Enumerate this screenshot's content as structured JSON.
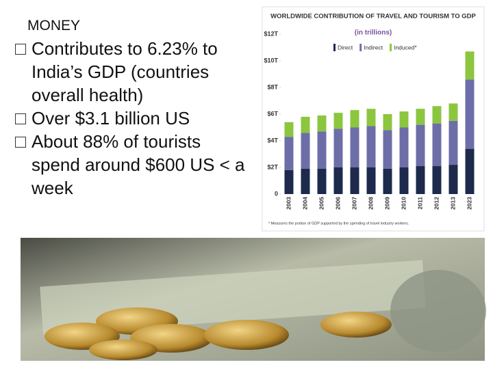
{
  "slide": {
    "heading": "MONEY",
    "bullets": [
      "Contributes to 6.23% to India’s GDP (countries overall health)",
      "Over $3.1 billion US",
      "About 88% of tourists spend around $600 US < a week"
    ]
  },
  "chart_data": {
    "type": "stacked_bar",
    "title": "WORLDWIDE CONTRIBUTION OF TRAVEL AND TOURISM TO GDP",
    "subtitle": "(in trillions)",
    "categories": [
      "2003",
      "2004",
      "2005",
      "2006",
      "2007",
      "2008",
      "2009",
      "2010",
      "2011",
      "2012",
      "2013",
      "2023"
    ],
    "series": [
      {
        "name": "Direct",
        "color": "#1d2a4c",
        "values": [
          1.8,
          1.9,
          1.9,
          2.0,
          2.0,
          2.0,
          1.9,
          2.0,
          2.1,
          2.1,
          2.2,
          3.4
        ]
      },
      {
        "name": "Indirect",
        "color": "#6d6ea8",
        "values": [
          2.5,
          2.7,
          2.8,
          2.9,
          3.0,
          3.1,
          2.9,
          3.0,
          3.1,
          3.2,
          3.3,
          5.2
        ]
      },
      {
        "name": "Induced*",
        "color": "#8cc63f",
        "values": [
          1.1,
          1.2,
          1.2,
          1.2,
          1.3,
          1.3,
          1.2,
          1.2,
          1.2,
          1.3,
          1.3,
          2.1
        ]
      }
    ],
    "ylim": [
      0,
      12
    ],
    "yticks": [
      {
        "value": 0,
        "label": "0"
      },
      {
        "value": 2,
        "label": "$2T"
      },
      {
        "value": 4,
        "label": "$4T"
      },
      {
        "value": 6,
        "label": "$6T"
      },
      {
        "value": 8,
        "label": "$8T"
      },
      {
        "value": 10,
        "label": "$10T"
      },
      {
        "value": 12,
        "label": "$12T"
      }
    ],
    "grid": false,
    "footnote": "* Measures the portion of GDP supported by the spending of travel industry workers."
  }
}
